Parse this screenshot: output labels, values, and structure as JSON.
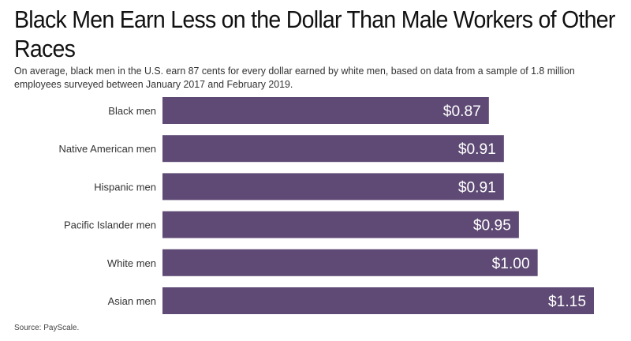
{
  "chart_data": {
    "type": "bar",
    "orientation": "horizontal",
    "title": "Black Men Earn Less on the Dollar Than Male Workers of Other Races",
    "subtitle": "On average, black men in the U.S. earn 87 cents for every dollar earned by white men, based on data from a sample of 1.8 million employees surveyed between January 2017 and February 2019.",
    "categories": [
      "Black men",
      "Native American men",
      "Hispanic men",
      "Pacific Islander men",
      "White men",
      "Asian men"
    ],
    "values": [
      0.87,
      0.91,
      0.91,
      0.95,
      1.0,
      1.15
    ],
    "value_labels": [
      "$0.87",
      "$0.91",
      "$0.91",
      "$0.95",
      "$1.00",
      "$1.15"
    ],
    "xlim": [
      0,
      1.15
    ],
    "grid": false,
    "bar_color": "#5e4a74",
    "label_color": "#ffffff",
    "source": "Source: PayScale."
  }
}
